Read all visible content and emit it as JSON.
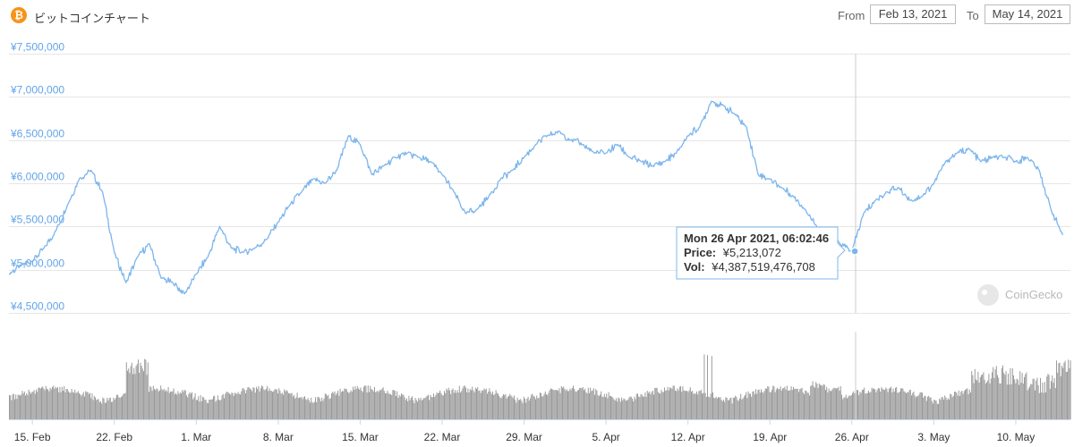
{
  "header": {
    "coin_symbol": "₿",
    "title": "ビットコインチャート",
    "from_label": "From",
    "from_value": "Feb 13, 2021",
    "to_label": "To",
    "to_value": "May 14, 2021"
  },
  "tooltip": {
    "datetime": "Mon 26 Apr 2021, 06:02:46",
    "price_label": "Price:",
    "price_value": "¥5,213,072",
    "vol_label": "Vol:",
    "vol_value": "¥4,387,519,476,708"
  },
  "watermark": "CoinGecko",
  "colors": {
    "line": "#7cb5ec",
    "volume": "#9b9b9b",
    "axis_text": "#62a4e8",
    "accent": "#f7931a"
  },
  "chart_data": {
    "type": "line",
    "title": "ビットコインチャート",
    "ylim": [
      4500000,
      7500000
    ],
    "y_ticks": [
      "¥7,500,000",
      "¥7,000,000",
      "¥6,500,000",
      "¥6,000,000",
      "¥5,500,000",
      "¥5,000,000",
      "¥4,500,000"
    ],
    "x_ticks": [
      "15. Feb",
      "22. Feb",
      "1. Mar",
      "8. Mar",
      "15. Mar",
      "22. Mar",
      "29. Mar",
      "5. Apr",
      "12. Apr",
      "19. Apr",
      "26. Apr",
      "3. May",
      "10. May"
    ],
    "series": [
      {
        "x": [
          "2021-02-13",
          "2021-02-14",
          "2021-02-15",
          "2021-02-16",
          "2021-02-17",
          "2021-02-18",
          "2021-02-19",
          "2021-02-20",
          "2021-02-21",
          "2021-02-22",
          "2021-02-23",
          "2021-02-24",
          "2021-02-25",
          "2021-02-26",
          "2021-02-27",
          "2021-02-28",
          "2021-03-01",
          "2021-03-02",
          "2021-03-03",
          "2021-03-04",
          "2021-03-05",
          "2021-03-06",
          "2021-03-07",
          "2021-03-08",
          "2021-03-09",
          "2021-03-10",
          "2021-03-11",
          "2021-03-12",
          "2021-03-13",
          "2021-03-14",
          "2021-03-15",
          "2021-03-16",
          "2021-03-17",
          "2021-03-18",
          "2021-03-19",
          "2021-03-20",
          "2021-03-21",
          "2021-03-22",
          "2021-03-23",
          "2021-03-24",
          "2021-03-25",
          "2021-03-26",
          "2021-03-27",
          "2021-03-28",
          "2021-03-29",
          "2021-03-30",
          "2021-03-31",
          "2021-04-01",
          "2021-04-02",
          "2021-04-03",
          "2021-04-04",
          "2021-04-05",
          "2021-04-06",
          "2021-04-07",
          "2021-04-08",
          "2021-04-09",
          "2021-04-10",
          "2021-04-11",
          "2021-04-12",
          "2021-04-13",
          "2021-04-14",
          "2021-04-15",
          "2021-04-16",
          "2021-04-17",
          "2021-04-18",
          "2021-04-19",
          "2021-04-20",
          "2021-04-21",
          "2021-04-22",
          "2021-04-23",
          "2021-04-24",
          "2021-04-25",
          "2021-04-26",
          "2021-04-27",
          "2021-04-28",
          "2021-04-29",
          "2021-04-30",
          "2021-05-01",
          "2021-05-02",
          "2021-05-03",
          "2021-05-04",
          "2021-05-05",
          "2021-05-06",
          "2021-05-07",
          "2021-05-08",
          "2021-05-09",
          "2021-05-10",
          "2021-05-11",
          "2021-05-12",
          "2021-05-13",
          "2021-05-14"
        ],
        "values": [
          4950000,
          5050000,
          5100000,
          5250000,
          5450000,
          5750000,
          6050000,
          6150000,
          5900000,
          5200000,
          4850000,
          5150000,
          5300000,
          4900000,
          4850000,
          4720000,
          4950000,
          5150000,
          5500000,
          5250000,
          5200000,
          5250000,
          5350000,
          5550000,
          5750000,
          5900000,
          6050000,
          6000000,
          6150000,
          6550000,
          6450000,
          6100000,
          6200000,
          6300000,
          6350000,
          6300000,
          6250000,
          6100000,
          5900000,
          5650000,
          5700000,
          5850000,
          6050000,
          6150000,
          6300000,
          6450000,
          6550000,
          6600000,
          6500000,
          6450000,
          6350000,
          6350000,
          6450000,
          6300000,
          6250000,
          6200000,
          6250000,
          6350000,
          6550000,
          6650000,
          6950000,
          6900000,
          6800000,
          6650000,
          6100000,
          6050000,
          5950000,
          5850000,
          5700000,
          5500000,
          5400000,
          5300000,
          5213072,
          5650000,
          5800000,
          5900000,
          5950000,
          5800000,
          5850000,
          6000000,
          6250000,
          6350000,
          6400000,
          6250000,
          6300000,
          6300000,
          6250000,
          6300000,
          6150000,
          5700000,
          5400000
        ]
      }
    ]
  }
}
